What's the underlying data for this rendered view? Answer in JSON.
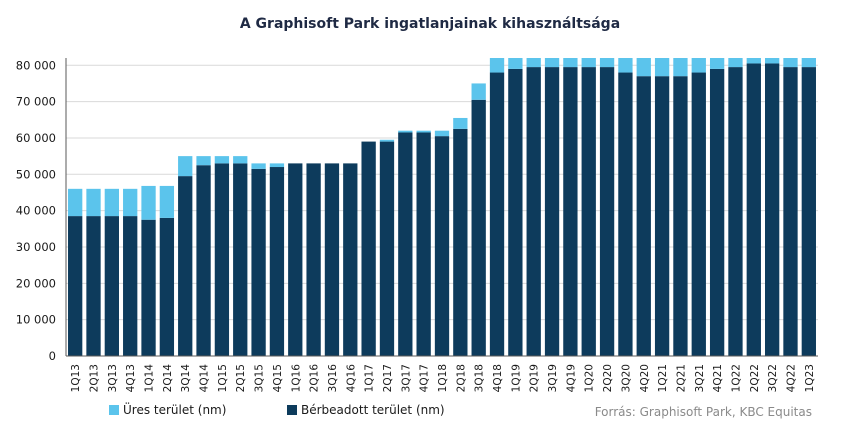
{
  "chart_data": {
    "type": "bar",
    "stacked": true,
    "title": "A Graphisoft Park ingatlanjainak kihasználtsága",
    "xlabel": "",
    "ylabel": "",
    "ylim": [
      0,
      82000
    ],
    "yticks": [
      "0",
      "10 000",
      "20 000",
      "30 000",
      "40 000",
      "50 000",
      "60 000",
      "70 000",
      "80 000"
    ],
    "ytick_values": [
      0,
      10000,
      20000,
      30000,
      40000,
      50000,
      60000,
      70000,
      80000
    ],
    "grid": "horizontal",
    "legend_position": "bottom-left",
    "categories": [
      "1Q13",
      "2Q13",
      "3Q13",
      "4Q13",
      "1Q14",
      "2Q14",
      "3Q14",
      "4Q14",
      "1Q15",
      "2Q15",
      "3Q15",
      "4Q15",
      "1Q16",
      "2Q16",
      "3Q16",
      "4Q16",
      "1Q17",
      "2Q17",
      "3Q17",
      "4Q17",
      "1Q18",
      "2Q18",
      "3Q18",
      "4Q18",
      "1Q19",
      "2Q19",
      "3Q19",
      "4Q19",
      "1Q20",
      "2Q20",
      "3Q20",
      "4Q20",
      "1Q21",
      "2Q21",
      "3Q21",
      "4Q21",
      "1Q22",
      "2Q22",
      "3Q22",
      "4Q22",
      "1Q23"
    ],
    "series": [
      {
        "name": "Bérbeadott terület (nm)",
        "color": "#0d3b5c",
        "values": [
          38500,
          38500,
          38500,
          38500,
          37500,
          38000,
          49500,
          52500,
          53000,
          53000,
          51500,
          52000,
          53000,
          53000,
          53000,
          53000,
          59000,
          59000,
          61500,
          61500,
          60500,
          62500,
          70500,
          78000,
          79000,
          79500,
          79500,
          79500,
          79500,
          79500,
          78000,
          77000,
          77000,
          77000,
          78000,
          79000,
          79500,
          80500,
          80500,
          79500,
          79500
        ]
      },
      {
        "name": "Üres terület (nm)",
        "color": "#5bc4ec",
        "values": [
          7500,
          7500,
          7500,
          7500,
          9300,
          8800,
          5500,
          2500,
          2000,
          2000,
          1500,
          1000,
          0,
          0,
          0,
          0,
          0,
          500,
          500,
          500,
          1500,
          3000,
          4500,
          4000,
          3000,
          2500,
          2500,
          2500,
          2500,
          2500,
          4000,
          5000,
          5000,
          5000,
          4000,
          3000,
          2500,
          1500,
          1500,
          2500,
          2500
        ]
      }
    ]
  },
  "legend": {
    "vacant_label": "Üres terület (nm)",
    "leased_label": "Bérbeadott terület (nm)"
  },
  "source_text": "Forrás: Graphisoft Park, KBC Equitas",
  "colors": {
    "leased": "#0d3b5c",
    "vacant": "#5bc4ec",
    "grid": "#d9d9d9",
    "axis": "#595959"
  }
}
